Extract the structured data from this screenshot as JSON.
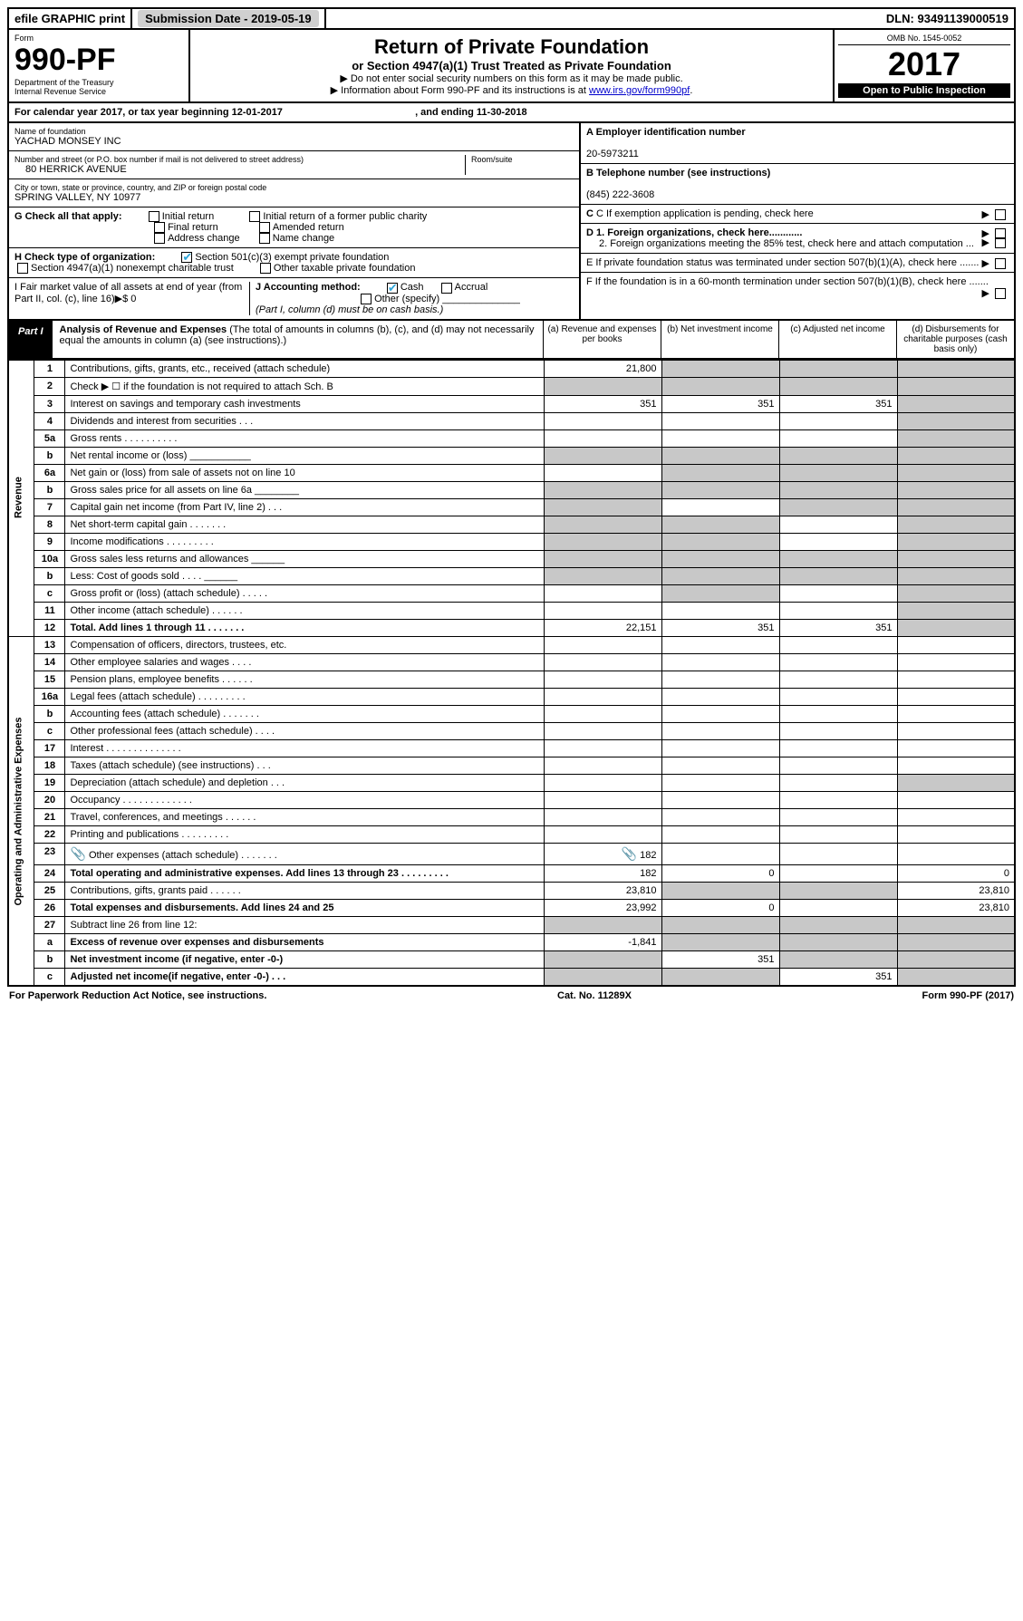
{
  "topbar": {
    "efile": "efile GRAPHIC print",
    "submission_label": "Submission Date - ",
    "submission_date": "2019-05-19",
    "dln_label": "DLN: ",
    "dln": "93491139000519"
  },
  "header": {
    "form_word": "Form",
    "form_number": "990-PF",
    "dept1": "Department of the Treasury",
    "dept2": "Internal Revenue Service",
    "title": "Return of Private Foundation",
    "subtitle": "or Section 4947(a)(1) Trust Treated as Private Foundation",
    "instr1": "▶ Do not enter social security numbers on this form as it may be made public.",
    "instr2_pre": "▶ Information about Form 990-PF and its instructions is at ",
    "instr2_link": "www.irs.gov/form990pf",
    "omb": "OMB No. 1545-0052",
    "year": "2017",
    "open": "Open to Public Inspection"
  },
  "calendar": {
    "text_pre": "For calendar year 2017, or tax year beginning ",
    "begin": "12-01-2017",
    "mid": " , and ending ",
    "end": "11-30-2018"
  },
  "ident": {
    "name_label": "Name of foundation",
    "name": "YACHAD MONSEY INC",
    "addr_label": "Number and street (or P.O. box number if mail is not delivered to street address)",
    "addr": "80 HERRICK AVENUE",
    "room_label": "Room/suite",
    "city_label": "City or town, state or province, country, and ZIP or foreign postal code",
    "city": "SPRING VALLEY, NY  10977",
    "a_label": "A Employer identification number",
    "ein": "20-5973211",
    "b_label": "B Telephone number (see instructions)",
    "phone": "(845) 222-3608",
    "c_label": "C If exemption application is pending, check here",
    "d1": "D 1. Foreign organizations, check here............",
    "d2": "2. Foreign organizations meeting the 85% test, check here and attach computation ...",
    "e": "E  If private foundation status was terminated under section 507(b)(1)(A), check here .......",
    "f": "F  If the foundation is in a 60-month termination under section 507(b)(1)(B), check here .......",
    "g_label": "G Check all that apply:",
    "g_opts": [
      "Initial return",
      "Final return",
      "Address change",
      "Initial return of a former public charity",
      "Amended return",
      "Name change"
    ],
    "h_label": "H Check type of organization:",
    "h1": "Section 501(c)(3) exempt private foundation",
    "h2": "Section 4947(a)(1) nonexempt charitable trust",
    "h3": "Other taxable private foundation",
    "i_label": "I Fair market value of all assets at end of year (from Part II, col. (c), line 16)▶$  0",
    "j_label": "J Accounting method:",
    "j_opts": [
      "Cash",
      "Accrual",
      "Other (specify)"
    ],
    "j_note": "(Part I, column (d) must be on cash basis.)"
  },
  "part1": {
    "tag": "Part I",
    "title": "Analysis of Revenue and Expenses",
    "note": "(The total of amounts in columns (b), (c), and (d) may not necessarily equal the amounts in column (a) (see instructions).)",
    "cols": {
      "a": "(a)   Revenue and expenses per books",
      "b": "(b)  Net investment income",
      "c": "(c)  Adjusted net income",
      "d": "(d)  Disbursements for charitable purposes (cash basis only)"
    }
  },
  "revenue_label": "Revenue",
  "expenses_label": "Operating and Administrative Expenses",
  "rows": {
    "r1": {
      "n": "1",
      "t": "Contributions, gifts, grants, etc., received (attach schedule)",
      "a": "21,800",
      "b": "",
      "c": "",
      "d": "",
      "shade_b": true,
      "shade_c": true,
      "shade_d": true
    },
    "r2": {
      "n": "2",
      "t": "Check ▶ ☐ if the foundation is not required to attach Sch. B",
      "shade_all": true
    },
    "r3": {
      "n": "3",
      "t": "Interest on savings and temporary cash investments",
      "a": "351",
      "b": "351",
      "c": "351",
      "shade_d": true
    },
    "r4": {
      "n": "4",
      "t": "Dividends and interest from securities   .   .   .",
      "shade_d": true
    },
    "r5a": {
      "n": "5a",
      "t": "Gross rents   .   .   .   .   .   .   .   .   .   .",
      "shade_d": true
    },
    "r5b": {
      "n": "b",
      "t": "Net rental income or (loss)  ___________",
      "shade_all": true
    },
    "r6a": {
      "n": "6a",
      "t": "Net gain or (loss) from sale of assets not on line 10",
      "shade_b": true,
      "shade_c": true,
      "shade_d": true
    },
    "r6b": {
      "n": "b",
      "t": "Gross sales price for all assets on line 6a ________",
      "shade_all": true
    },
    "r7": {
      "n": "7",
      "t": "Capital gain net income (from Part IV, line 2)   .   .   .",
      "shade_a": true,
      "shade_c": true,
      "shade_d": true
    },
    "r8": {
      "n": "8",
      "t": "Net short-term capital gain   .   .   .   .   .   .   .",
      "shade_a": true,
      "shade_b": true,
      "shade_d": true
    },
    "r9": {
      "n": "9",
      "t": "Income modifications   .   .   .   .   .   .   .   .   .",
      "shade_a": true,
      "shade_b": true,
      "shade_d": true
    },
    "r10a": {
      "n": "10a",
      "t": "Gross sales less returns and allowances  ______",
      "shade_all": true
    },
    "r10b": {
      "n": "b",
      "t": "Less: Cost of goods sold      .   .   .   .  ______",
      "shade_all": true
    },
    "r10c": {
      "n": "c",
      "t": "Gross profit or (loss) (attach schedule)    .   .   .   .   .",
      "shade_b": true,
      "shade_d": true
    },
    "r11": {
      "n": "11",
      "t": "Other income (attach schedule)    .   .   .   .   .   .",
      "shade_d": true
    },
    "r12": {
      "n": "12",
      "t": "Total. Add lines 1 through 11    .   .   .   .   .   .   .",
      "a": "22,151",
      "b": "351",
      "c": "351",
      "shade_d": true,
      "bold": true
    },
    "r13": {
      "n": "13",
      "t": "Compensation of officers, directors, trustees, etc."
    },
    "r14": {
      "n": "14",
      "t": "Other employee salaries and wages    .   .   .   ."
    },
    "r15": {
      "n": "15",
      "t": "Pension plans, employee benefits   .   .   .   .   .   ."
    },
    "r16a": {
      "n": "16a",
      "t": "Legal fees (attach schedule)  .   .   .   .   .   .   .   .   ."
    },
    "r16b": {
      "n": "b",
      "t": "Accounting fees (attach schedule)  .   .   .   .   .   .   ."
    },
    "r16c": {
      "n": "c",
      "t": "Other professional fees (attach schedule)    .   .   .   ."
    },
    "r17": {
      "n": "17",
      "t": "Interest   .   .   .   .   .   .   .   .   .   .   .   .   .   ."
    },
    "r18": {
      "n": "18",
      "t": "Taxes (attach schedule) (see instructions)    .   .   ."
    },
    "r19": {
      "n": "19",
      "t": "Depreciation (attach schedule) and depletion   .   .   .",
      "shade_d": true
    },
    "r20": {
      "n": "20",
      "t": "Occupancy  .   .   .   .   .   .   .   .   .   .   .   .   ."
    },
    "r21": {
      "n": "21",
      "t": "Travel, conferences, and meetings  .   .   .   .   .   ."
    },
    "r22": {
      "n": "22",
      "t": "Printing and publications  .   .   .   .   .   .   .   .   ."
    },
    "r23": {
      "n": "23",
      "t": "Other expenses (attach schedule)   .   .   .   .   .   .   .",
      "a": "182",
      "clip": true
    },
    "r24": {
      "n": "24",
      "t": "Total operating and administrative expenses. Add lines 13 through 23   .   .   .   .   .   .   .   .   .",
      "a": "182",
      "b": "0",
      "d": "0",
      "bold": true
    },
    "r25": {
      "n": "25",
      "t": "Contributions, gifts, grants paid     .   .   .   .   .   .",
      "a": "23,810",
      "d": "23,810",
      "shade_b": true,
      "shade_c": true
    },
    "r26": {
      "n": "26",
      "t": "Total expenses and disbursements. Add lines 24 and 25",
      "a": "23,992",
      "b": "0",
      "d": "23,810",
      "bold": true
    },
    "r27": {
      "n": "27",
      "t": "Subtract line 26 from line 12:",
      "shade_all_only": true
    },
    "r27a": {
      "n": "a",
      "t": "Excess of revenue over expenses and disbursements",
      "a": "-1,841",
      "shade_b": true,
      "shade_c": true,
      "shade_d": true,
      "bold": true
    },
    "r27b": {
      "n": "b",
      "t": "Net investment income (if negative, enter -0-)",
      "b": "351",
      "shade_a": true,
      "shade_c": true,
      "shade_d": true,
      "bold": true
    },
    "r27c": {
      "n": "c",
      "t": "Adjusted net income(if negative, enter -0-)   .   .   .",
      "c": "351",
      "shade_a": true,
      "shade_b": true,
      "shade_d": true,
      "bold": true
    }
  },
  "footer": {
    "left": "For Paperwork Reduction Act Notice, see instructions.",
    "mid": "Cat. No. 11289X",
    "right": "Form 990-PF (2017)"
  }
}
